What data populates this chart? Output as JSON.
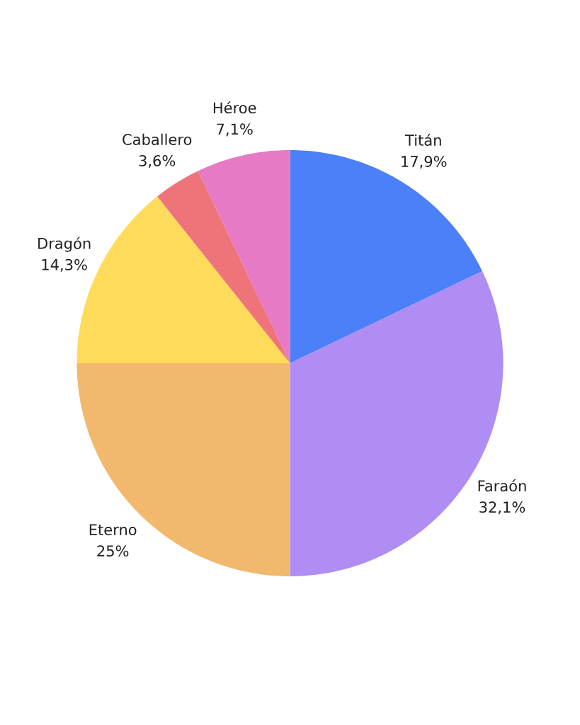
{
  "chart_data": {
    "type": "pie",
    "categories": [
      "Titán",
      "Faraón",
      "Eterno",
      "Dragón",
      "Caballero",
      "Héroe"
    ],
    "values": [
      17.9,
      32.1,
      25,
      14.3,
      3.6,
      7.1
    ],
    "colors": [
      "#4c80f8",
      "#af8df5",
      "#f2b86e",
      "#fedb5a",
      "#ee7479",
      "#e67ac4"
    ],
    "value_labels": [
      "17,9%",
      "32,1%",
      "25%",
      "14,3%",
      "3,6%",
      "7,1%"
    ]
  }
}
